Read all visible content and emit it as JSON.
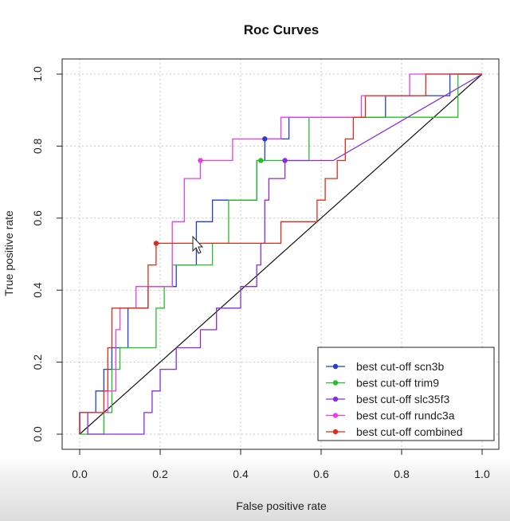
{
  "chart_data": {
    "type": "line",
    "title": "Roc Curves",
    "xlabel": "False positive rate",
    "ylabel": "True positive rate",
    "xlim": [
      0,
      1
    ],
    "ylim": [
      0,
      1
    ],
    "xticks": [
      "0.0",
      "0.2",
      "0.4",
      "0.6",
      "0.8",
      "1.0"
    ],
    "yticks": [
      "0.0",
      "0.2",
      "0.4",
      "0.6",
      "0.8",
      "1.0"
    ],
    "grid": true,
    "legend_position": "bottom-right",
    "diagonal_reference": true,
    "series": [
      {
        "name": "best cut-off scn3b",
        "color": "#1f3fdc",
        "points": [
          [
            0,
            0
          ],
          [
            0,
            0.06
          ],
          [
            0.04,
            0.06
          ],
          [
            0.04,
            0.12
          ],
          [
            0.06,
            0.12
          ],
          [
            0.06,
            0.18
          ],
          [
            0.08,
            0.18
          ],
          [
            0.08,
            0.24
          ],
          [
            0.12,
            0.24
          ],
          [
            0.12,
            0.35
          ],
          [
            0.17,
            0.35
          ],
          [
            0.17,
            0.41
          ],
          [
            0.19,
            0.41
          ],
          [
            0.24,
            0.41
          ],
          [
            0.24,
            0.47
          ],
          [
            0.29,
            0.47
          ],
          [
            0.29,
            0.59
          ],
          [
            0.33,
            0.59
          ],
          [
            0.33,
            0.65
          ],
          [
            0.44,
            0.65
          ],
          [
            0.44,
            0.76
          ],
          [
            0.46,
            0.76
          ],
          [
            0.46,
            0.82
          ],
          [
            0.52,
            0.82
          ],
          [
            0.52,
            0.88
          ],
          [
            0.76,
            0.88
          ],
          [
            0.76,
            0.94
          ],
          [
            0.92,
            0.94
          ],
          [
            0.92,
            1.0
          ],
          [
            1,
            1
          ]
        ],
        "best_cutoff": [
          0.46,
          0.82
        ]
      },
      {
        "name": "best cut-off trim9",
        "color": "#22c022",
        "points": [
          [
            0,
            0
          ],
          [
            0.06,
            0
          ],
          [
            0.06,
            0.06
          ],
          [
            0.08,
            0.06
          ],
          [
            0.08,
            0.18
          ],
          [
            0.1,
            0.18
          ],
          [
            0.1,
            0.24
          ],
          [
            0.19,
            0.24
          ],
          [
            0.19,
            0.35
          ],
          [
            0.21,
            0.35
          ],
          [
            0.21,
            0.41
          ],
          [
            0.23,
            0.41
          ],
          [
            0.23,
            0.47
          ],
          [
            0.33,
            0.47
          ],
          [
            0.33,
            0.53
          ],
          [
            0.37,
            0.53
          ],
          [
            0.37,
            0.65
          ],
          [
            0.44,
            0.65
          ],
          [
            0.44,
            0.76
          ],
          [
            0.52,
            0.76
          ],
          [
            0.57,
            0.76
          ],
          [
            0.57,
            0.88
          ],
          [
            0.94,
            0.88
          ],
          [
            0.94,
            1.0
          ],
          [
            1,
            1
          ]
        ],
        "best_cutoff": [
          0.45,
          0.76
        ]
      },
      {
        "name": "best cut-off slc35f3",
        "color": "#8a2be2",
        "points": [
          [
            0,
            0
          ],
          [
            0,
            0.06
          ],
          [
            0.02,
            0.06
          ],
          [
            0.02,
            0
          ],
          [
            0.16,
            0
          ],
          [
            0.16,
            0.06
          ],
          [
            0.18,
            0.06
          ],
          [
            0.18,
            0.12
          ],
          [
            0.2,
            0.12
          ],
          [
            0.2,
            0.18
          ],
          [
            0.24,
            0.18
          ],
          [
            0.24,
            0.24
          ],
          [
            0.3,
            0.24
          ],
          [
            0.3,
            0.29
          ],
          [
            0.34,
            0.29
          ],
          [
            0.34,
            0.35
          ],
          [
            0.4,
            0.35
          ],
          [
            0.4,
            0.41
          ],
          [
            0.44,
            0.41
          ],
          [
            0.44,
            0.47
          ],
          [
            0.45,
            0.47
          ],
          [
            0.45,
            0.53
          ],
          [
            0.46,
            0.53
          ],
          [
            0.46,
            0.59
          ],
          [
            0.46,
            0.65
          ],
          [
            0.47,
            0.65
          ],
          [
            0.47,
            0.71
          ],
          [
            0.51,
            0.71
          ],
          [
            0.51,
            0.76
          ],
          [
            0.63,
            0.76
          ],
          [
            1,
            1
          ]
        ],
        "best_cutoff": [
          0.51,
          0.76
        ]
      },
      {
        "name": "best cut-off rundc3a",
        "color": "#e83ee8",
        "points": [
          [
            0,
            0
          ],
          [
            0,
            0.06
          ],
          [
            0.07,
            0.06
          ],
          [
            0.07,
            0.12
          ],
          [
            0.09,
            0.12
          ],
          [
            0.09,
            0.29
          ],
          [
            0.1,
            0.29
          ],
          [
            0.1,
            0.35
          ],
          [
            0.14,
            0.35
          ],
          [
            0.14,
            0.41
          ],
          [
            0.23,
            0.41
          ],
          [
            0.23,
            0.59
          ],
          [
            0.26,
            0.59
          ],
          [
            0.26,
            0.71
          ],
          [
            0.3,
            0.71
          ],
          [
            0.3,
            0.76
          ],
          [
            0.38,
            0.76
          ],
          [
            0.38,
            0.82
          ],
          [
            0.5,
            0.82
          ],
          [
            0.5,
            0.88
          ],
          [
            0.7,
            0.88
          ],
          [
            0.7,
            0.94
          ],
          [
            0.82,
            0.94
          ],
          [
            0.82,
            1.0
          ],
          [
            1,
            1
          ]
        ],
        "best_cutoff": [
          0.3,
          0.76
        ]
      },
      {
        "name": "best cut-off combined",
        "color": "#e42a16",
        "points": [
          [
            0,
            0
          ],
          [
            0,
            0.06
          ],
          [
            0.06,
            0.06
          ],
          [
            0.06,
            0.12
          ],
          [
            0.07,
            0.12
          ],
          [
            0.07,
            0.24
          ],
          [
            0.08,
            0.24
          ],
          [
            0.08,
            0.35
          ],
          [
            0.17,
            0.35
          ],
          [
            0.17,
            0.47
          ],
          [
            0.19,
            0.47
          ],
          [
            0.19,
            0.53
          ],
          [
            0.5,
            0.53
          ],
          [
            0.5,
            0.59
          ],
          [
            0.59,
            0.59
          ],
          [
            0.59,
            0.65
          ],
          [
            0.61,
            0.65
          ],
          [
            0.61,
            0.71
          ],
          [
            0.64,
            0.71
          ],
          [
            0.64,
            0.76
          ],
          [
            0.66,
            0.76
          ],
          [
            0.66,
            0.82
          ],
          [
            0.68,
            0.82
          ],
          [
            0.68,
            0.88
          ],
          [
            0.71,
            0.88
          ],
          [
            0.71,
            0.94
          ],
          [
            0.86,
            0.94
          ],
          [
            0.86,
            1.0
          ],
          [
            1,
            1
          ]
        ],
        "best_cutoff": [
          0.19,
          0.53
        ]
      }
    ]
  }
}
